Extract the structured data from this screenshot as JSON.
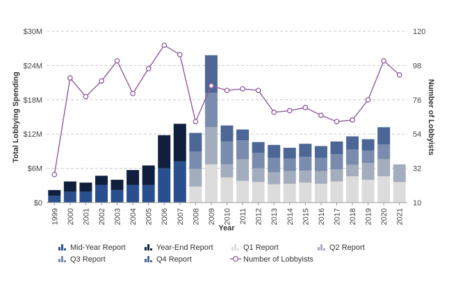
{
  "chart_data": {
    "type": "bar",
    "subtype": "stacked bar with line on secondary axis",
    "categories": [
      "1999",
      "2000",
      "2001",
      "2002",
      "2003",
      "2004",
      "2005",
      "2006",
      "2007",
      "2008",
      "2009",
      "2010",
      "2011",
      "2012",
      "2013",
      "2014",
      "2015",
      "2016",
      "2017",
      "2018",
      "2019",
      "2020",
      "2021"
    ],
    "xlabel": "Year",
    "ylabel": "Total Lobbying Spending",
    "y2label": "Number of Lobbyists",
    "ylim": [
      0,
      30
    ],
    "y2lim": [
      10,
      120
    ],
    "yticks": [
      "$0",
      "$6M",
      "$12M",
      "$18M",
      "$24M",
      "$30M"
    ],
    "y2ticks": [
      "10",
      "32",
      "54",
      "76",
      "98",
      "120"
    ],
    "grid": "horizontal dashed",
    "legend_position": "bottom",
    "bar_series": [
      {
        "key": "mid",
        "name": "Mid-Year Report",
        "color": "#2a4f8f",
        "values": [
          1.2,
          1.9,
          1.9,
          3.1,
          2.2,
          3.1,
          3.1,
          6.0,
          7.2,
          null,
          null,
          null,
          null,
          null,
          null,
          null,
          null,
          null,
          null,
          null,
          null,
          null,
          null
        ]
      },
      {
        "key": "ye",
        "name": "Year-End Report",
        "color": "#0f1f3d",
        "values": [
          1.0,
          1.8,
          1.6,
          1.6,
          1.8,
          2.6,
          3.4,
          5.8,
          6.6,
          null,
          null,
          null,
          null,
          null,
          null,
          null,
          null,
          null,
          null,
          null,
          null,
          null,
          null
        ]
      },
      {
        "key": "q1",
        "name": "Q1 Report",
        "color": "#dcdcdc",
        "values": [
          null,
          null,
          null,
          null,
          null,
          null,
          null,
          null,
          null,
          2.8,
          6.7,
          4.4,
          3.8,
          3.6,
          3.2,
          3.3,
          3.5,
          3.3,
          3.7,
          4.6,
          4.0,
          4.6,
          3.6
        ]
      },
      {
        "key": "q2",
        "name": "Q2 Report",
        "color": "#a3adbd",
        "values": [
          null,
          null,
          null,
          null,
          null,
          null,
          null,
          null,
          null,
          3.1,
          6.5,
          2.3,
          3.8,
          2.4,
          2.1,
          2.2,
          2.1,
          2.2,
          2.1,
          2.0,
          2.9,
          3.0,
          3.1
        ]
      },
      {
        "key": "q3",
        "name": "Q3 Report",
        "color": "#7a8cad",
        "values": [
          null,
          null,
          null,
          null,
          null,
          null,
          null,
          null,
          null,
          3.0,
          6.0,
          4.0,
          3.3,
          2.7,
          2.5,
          2.2,
          2.4,
          2.3,
          2.7,
          2.7,
          2.2,
          2.6,
          null
        ]
      },
      {
        "key": "q4",
        "name": "Q4 Report",
        "color": "#4c6796",
        "values": [
          null,
          null,
          null,
          null,
          null,
          null,
          null,
          null,
          null,
          3.3,
          6.6,
          2.8,
          1.9,
          1.9,
          2.3,
          1.9,
          2.3,
          2.1,
          2.2,
          2.3,
          2.0,
          3.0,
          null
        ]
      }
    ],
    "line_series": {
      "name": "Number of Lobbyists",
      "color": "#8e5a9e",
      "values": [
        28,
        90,
        78,
        88,
        101,
        80,
        96,
        111,
        105,
        62,
        85,
        82,
        83,
        82,
        68,
        69,
        71,
        66,
        62,
        63,
        76,
        101,
        92
      ]
    }
  }
}
